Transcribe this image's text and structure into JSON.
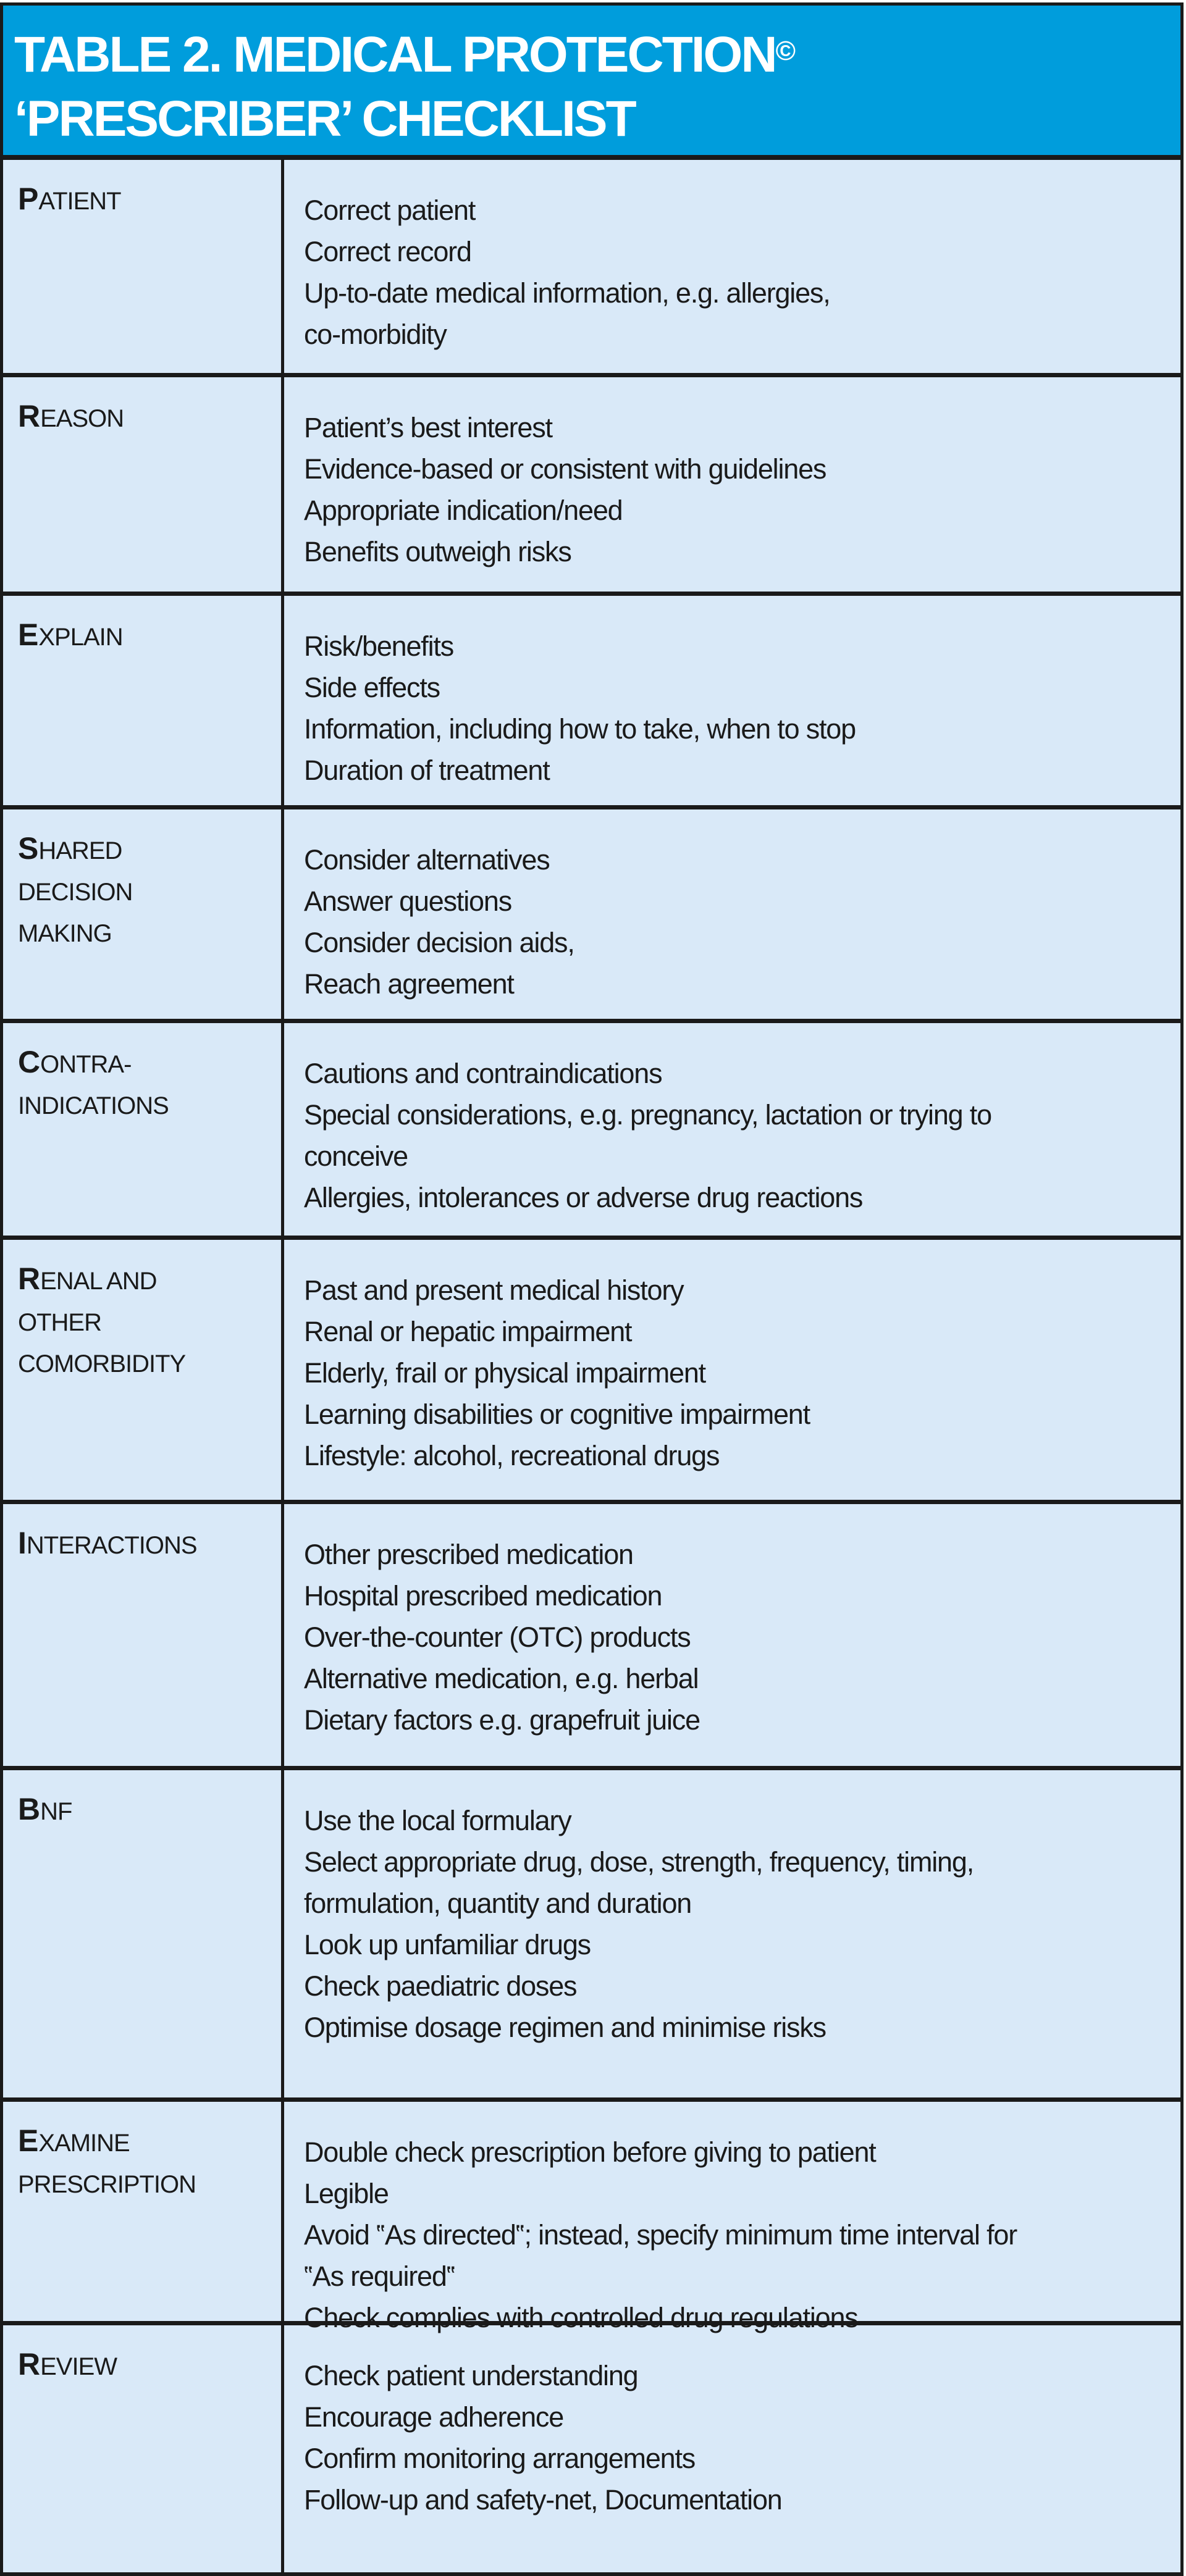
{
  "title": {
    "line1": "TABLE 2. MEDICAL PROTECTION",
    "mark": "©",
    "line2": "‘PRESCRIBER’ CHECKLIST"
  },
  "colors": {
    "header": "#009ddc",
    "cell": "#d9e9f8",
    "border": "#1a1a1a"
  },
  "rows": [
    {
      "first": "P",
      "rest": [
        "ATIENT"
      ],
      "lines": [
        "Correct patient",
        "Correct record",
        "Up-to-date medical information, e.g. allergies,",
        "co-morbidity"
      ]
    },
    {
      "first": "R",
      "rest": [
        "EASON"
      ],
      "lines": [
        "Patient’s best interest",
        "Evidence-based or consistent with guidelines",
        "Appropriate indication/need",
        "Benefits outweigh risks"
      ]
    },
    {
      "first": "E",
      "rest": [
        "XPLAIN"
      ],
      "lines": [
        "Risk/benefits",
        "Side effects",
        "Information, including how to take, when to stop",
        "Duration of treatment"
      ]
    },
    {
      "first": "S",
      "rest": [
        "HARED",
        "DECISION",
        "MAKING"
      ],
      "lines": [
        "Consider alternatives",
        "Answer questions",
        "Consider decision aids,",
        "Reach agreement"
      ]
    },
    {
      "first": "C",
      "rest": [
        "ONTRA-",
        "INDICATIONS"
      ],
      "lines": [
        "Cautions and contraindications",
        "Special considerations, e.g. pregnancy, lactation or trying to",
        "conceive",
        "Allergies, intolerances or adverse drug reactions"
      ]
    },
    {
      "first": "R",
      "rest": [
        "ENAL AND",
        "OTHER",
        "COMORBIDITY"
      ],
      "lines": [
        "Past and present medical history",
        "Renal or hepatic impairment",
        "Elderly, frail or physical impairment",
        "Learning disabilities or cognitive impairment",
        "Lifestyle: alcohol, recreational drugs"
      ]
    },
    {
      "first": "I",
      "rest": [
        "NTERACTIONS"
      ],
      "lines": [
        "Other prescribed medication",
        "Hospital prescribed medication",
        "Over-the-counter (OTC) products",
        "Alternative  medication, e.g. herbal",
        "Dietary factors e.g. grapefruit juice"
      ]
    },
    {
      "first": "B",
      "rest": [
        "NF"
      ],
      "lines": [
        "Use the local formulary",
        "Select appropriate drug, dose, strength, frequency, timing,",
        "formulation, quantity and duration",
        "Look up unfamiliar drugs",
        "Check paediatric doses",
        "Optimise dosage regimen and minimise risks"
      ]
    },
    {
      "first": "E",
      "rest": [
        "XAMINE",
        "PRESCRIPTION"
      ],
      "lines": [
        "Double check prescription before giving to patient",
        "Legible",
        "Avoid ‟As directed‟; instead, specify minimum time interval for",
        "‟As required‟",
        "Check complies with controlled drug regulations"
      ]
    },
    {
      "first": "R",
      "rest": [
        "EVIEW"
      ],
      "lines": [
        "Check patient understanding",
        "Encourage adherence",
        "Confirm monitoring arrangements",
        "Follow-up and safety-net, Documentation"
      ]
    }
  ]
}
